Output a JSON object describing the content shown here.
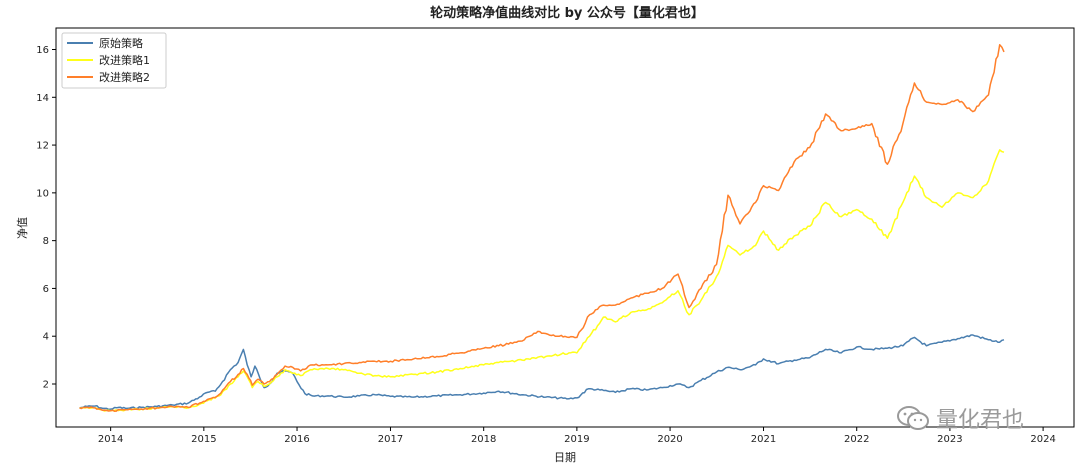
{
  "chart_data": {
    "type": "line",
    "title": "轮动策略净值曲线对比 by 公众号【量化君也】",
    "xlabel": "日期",
    "ylabel": "净值",
    "xlim": [
      "2013-06-01",
      "2024-05-01"
    ],
    "ylim": [
      0.2,
      16.9
    ],
    "x_ticks": [
      "2014",
      "2015",
      "2016",
      "2017",
      "2018",
      "2019",
      "2020",
      "2021",
      "2022",
      "2023",
      "2024"
    ],
    "y_ticks": [
      "2",
      "4",
      "6",
      "8",
      "10",
      "12",
      "14",
      "16"
    ],
    "grid": false,
    "legend_position": "top-left",
    "series": [
      {
        "name": "原始策略",
        "color": "#4a7fb0",
        "points": [
          [
            "2013-09-01",
            1.0
          ],
          [
            "2013-10-01",
            1.06
          ],
          [
            "2013-11-01",
            1.08
          ],
          [
            "2013-12-01",
            0.98
          ],
          [
            "2014-01-01",
            0.95
          ],
          [
            "2014-02-01",
            1.02
          ],
          [
            "2014-03-01",
            0.98
          ],
          [
            "2014-05-01",
            1.02
          ],
          [
            "2014-07-01",
            1.06
          ],
          [
            "2014-09-01",
            1.12
          ],
          [
            "2014-11-01",
            1.2
          ],
          [
            "2014-12-15",
            1.45
          ],
          [
            "2015-01-15",
            1.65
          ],
          [
            "2015-02-15",
            1.7
          ],
          [
            "2015-03-15",
            2.1
          ],
          [
            "2015-04-15",
            2.6
          ],
          [
            "2015-05-15",
            2.9
          ],
          [
            "2015-06-05",
            3.45
          ],
          [
            "2015-06-20",
            2.8
          ],
          [
            "2015-07-05",
            2.3
          ],
          [
            "2015-07-20",
            2.75
          ],
          [
            "2015-08-10",
            2.2
          ],
          [
            "2015-08-25",
            1.85
          ],
          [
            "2015-09-15",
            2.0
          ],
          [
            "2015-10-15",
            2.45
          ],
          [
            "2015-11-15",
            2.55
          ],
          [
            "2015-12-15",
            2.45
          ],
          [
            "2016-01-10",
            1.95
          ],
          [
            "2016-02-01",
            1.6
          ],
          [
            "2016-03-01",
            1.5
          ],
          [
            "2016-05-01",
            1.5
          ],
          [
            "2016-07-01",
            1.45
          ],
          [
            "2016-09-01",
            1.5
          ],
          [
            "2016-11-01",
            1.55
          ],
          [
            "2017-01-01",
            1.48
          ],
          [
            "2017-04-01",
            1.45
          ],
          [
            "2017-07-01",
            1.5
          ],
          [
            "2017-10-01",
            1.55
          ],
          [
            "2018-01-01",
            1.62
          ],
          [
            "2018-03-01",
            1.7
          ],
          [
            "2018-06-01",
            1.55
          ],
          [
            "2018-09-01",
            1.45
          ],
          [
            "2018-12-01",
            1.38
          ],
          [
            "2019-01-01",
            1.42
          ],
          [
            "2019-02-15",
            1.8
          ],
          [
            "2019-04-01",
            1.75
          ],
          [
            "2019-06-01",
            1.65
          ],
          [
            "2019-08-01",
            1.8
          ],
          [
            "2019-10-01",
            1.75
          ],
          [
            "2019-12-01",
            1.85
          ],
          [
            "2020-02-01",
            2.0
          ],
          [
            "2020-03-15",
            1.85
          ],
          [
            "2020-05-01",
            2.15
          ],
          [
            "2020-07-01",
            2.5
          ],
          [
            "2020-08-15",
            2.7
          ],
          [
            "2020-10-01",
            2.6
          ],
          [
            "2020-12-01",
            2.8
          ],
          [
            "2021-01-01",
            3.05
          ],
          [
            "2021-03-01",
            2.85
          ],
          [
            "2021-05-01",
            3.0
          ],
          [
            "2021-07-01",
            3.1
          ],
          [
            "2021-09-01",
            3.45
          ],
          [
            "2021-11-01",
            3.3
          ],
          [
            "2022-01-01",
            3.55
          ],
          [
            "2022-03-01",
            3.45
          ],
          [
            "2022-05-01",
            3.5
          ],
          [
            "2022-07-01",
            3.6
          ],
          [
            "2022-08-15",
            3.95
          ],
          [
            "2022-10-01",
            3.6
          ],
          [
            "2022-12-01",
            3.75
          ],
          [
            "2023-02-01",
            3.9
          ],
          [
            "2023-04-01",
            4.05
          ],
          [
            "2023-06-01",
            3.85
          ],
          [
            "2023-07-15",
            3.75
          ],
          [
            "2023-08-01",
            3.85
          ]
        ]
      },
      {
        "name": "改进策略1",
        "color": "#ffff1a",
        "points": [
          [
            "2013-09-01",
            1.0
          ],
          [
            "2013-10-01",
            1.02
          ],
          [
            "2013-11-01",
            1.0
          ],
          [
            "2013-12-01",
            0.9
          ],
          [
            "2014-01-01",
            0.88
          ],
          [
            "2014-03-01",
            0.92
          ],
          [
            "2014-05-01",
            0.95
          ],
          [
            "2014-07-01",
            1.0
          ],
          [
            "2014-09-01",
            1.05
          ],
          [
            "2014-11-01",
            1.0
          ],
          [
            "2014-12-15",
            1.15
          ],
          [
            "2015-01-15",
            1.3
          ],
          [
            "2015-03-01",
            1.5
          ],
          [
            "2015-04-15",
            2.0
          ],
          [
            "2015-05-15",
            2.3
          ],
          [
            "2015-06-05",
            2.55
          ],
          [
            "2015-06-20",
            2.3
          ],
          [
            "2015-07-10",
            1.85
          ],
          [
            "2015-08-01",
            2.1
          ],
          [
            "2015-08-25",
            1.9
          ],
          [
            "2015-09-15",
            2.0
          ],
          [
            "2015-10-15",
            2.3
          ],
          [
            "2015-11-15",
            2.6
          ],
          [
            "2015-12-15",
            2.45
          ],
          [
            "2016-01-15",
            2.35
          ],
          [
            "2016-03-01",
            2.6
          ],
          [
            "2016-05-01",
            2.65
          ],
          [
            "2016-07-01",
            2.6
          ],
          [
            "2016-09-01",
            2.45
          ],
          [
            "2016-11-01",
            2.35
          ],
          [
            "2017-01-01",
            2.3
          ],
          [
            "2017-04-01",
            2.4
          ],
          [
            "2017-07-01",
            2.5
          ],
          [
            "2017-10-01",
            2.65
          ],
          [
            "2018-01-01",
            2.8
          ],
          [
            "2018-03-01",
            2.9
          ],
          [
            "2018-06-01",
            3.0
          ],
          [
            "2018-09-01",
            3.15
          ],
          [
            "2018-12-01",
            3.3
          ],
          [
            "2019-01-01",
            3.3
          ],
          [
            "2019-02-20",
            4.0
          ],
          [
            "2019-04-15",
            4.8
          ],
          [
            "2019-06-01",
            4.6
          ],
          [
            "2019-08-01",
            5.0
          ],
          [
            "2019-10-01",
            5.1
          ],
          [
            "2019-12-01",
            5.4
          ],
          [
            "2020-02-01",
            5.9
          ],
          [
            "2020-03-15",
            4.9
          ],
          [
            "2020-05-01",
            5.5
          ],
          [
            "2020-07-01",
            6.5
          ],
          [
            "2020-08-15",
            7.8
          ],
          [
            "2020-10-01",
            7.4
          ],
          [
            "2020-12-01",
            7.8
          ],
          [
            "2021-01-01",
            8.4
          ],
          [
            "2021-03-01",
            7.6
          ],
          [
            "2021-05-01",
            8.2
          ],
          [
            "2021-07-01",
            8.6
          ],
          [
            "2021-09-01",
            9.6
          ],
          [
            "2021-11-01",
            9.0
          ],
          [
            "2022-01-01",
            9.3
          ],
          [
            "2022-03-01",
            8.9
          ],
          [
            "2022-05-01",
            8.1
          ],
          [
            "2022-07-01",
            9.6
          ],
          [
            "2022-08-15",
            10.7
          ],
          [
            "2022-10-01",
            9.8
          ],
          [
            "2022-12-01",
            9.4
          ],
          [
            "2023-02-01",
            10.0
          ],
          [
            "2023-04-01",
            9.8
          ],
          [
            "2023-06-01",
            10.5
          ],
          [
            "2023-07-15",
            11.8
          ],
          [
            "2023-08-01",
            11.7
          ]
        ]
      },
      {
        "name": "改进策略2",
        "color": "#ff7f2a",
        "points": [
          [
            "2013-09-01",
            1.0
          ],
          [
            "2013-10-01",
            1.02
          ],
          [
            "2013-11-01",
            1.0
          ],
          [
            "2013-12-01",
            0.9
          ],
          [
            "2014-01-01",
            0.88
          ],
          [
            "2014-03-01",
            0.92
          ],
          [
            "2014-05-01",
            0.95
          ],
          [
            "2014-07-01",
            1.0
          ],
          [
            "2014-09-01",
            1.05
          ],
          [
            "2014-11-01",
            1.02
          ],
          [
            "2014-12-15",
            1.2
          ],
          [
            "2015-01-15",
            1.35
          ],
          [
            "2015-03-01",
            1.55
          ],
          [
            "2015-04-15",
            2.1
          ],
          [
            "2015-05-15",
            2.4
          ],
          [
            "2015-06-05",
            2.65
          ],
          [
            "2015-06-20",
            2.4
          ],
          [
            "2015-07-10",
            1.95
          ],
          [
            "2015-08-01",
            2.2
          ],
          [
            "2015-08-25",
            2.0
          ],
          [
            "2015-09-15",
            2.1
          ],
          [
            "2015-10-15",
            2.4
          ],
          [
            "2015-11-15",
            2.75
          ],
          [
            "2015-12-15",
            2.7
          ],
          [
            "2016-01-15",
            2.55
          ],
          [
            "2016-03-01",
            2.8
          ],
          [
            "2016-05-01",
            2.8
          ],
          [
            "2016-07-01",
            2.85
          ],
          [
            "2016-09-01",
            2.9
          ],
          [
            "2016-11-01",
            2.95
          ],
          [
            "2017-01-01",
            2.95
          ],
          [
            "2017-04-01",
            3.05
          ],
          [
            "2017-07-01",
            3.15
          ],
          [
            "2017-10-01",
            3.3
          ],
          [
            "2018-01-01",
            3.5
          ],
          [
            "2018-03-01",
            3.6
          ],
          [
            "2018-06-01",
            3.8
          ],
          [
            "2018-08-01",
            4.2
          ],
          [
            "2018-10-01",
            4.05
          ],
          [
            "2018-12-01",
            3.95
          ],
          [
            "2019-01-01",
            3.95
          ],
          [
            "2019-02-20",
            4.9
          ],
          [
            "2019-04-15",
            5.3
          ],
          [
            "2019-06-01",
            5.3
          ],
          [
            "2019-08-01",
            5.6
          ],
          [
            "2019-10-01",
            5.8
          ],
          [
            "2019-12-01",
            6.0
          ],
          [
            "2020-02-01",
            6.6
          ],
          [
            "2020-03-15",
            5.2
          ],
          [
            "2020-05-01",
            6.0
          ],
          [
            "2020-07-01",
            7.0
          ],
          [
            "2020-08-15",
            9.9
          ],
          [
            "2020-10-01",
            8.7
          ],
          [
            "2020-12-01",
            9.6
          ],
          [
            "2021-01-01",
            10.3
          ],
          [
            "2021-03-01",
            10.1
          ],
          [
            "2021-05-01",
            11.3
          ],
          [
            "2021-07-01",
            11.9
          ],
          [
            "2021-09-01",
            13.3
          ],
          [
            "2021-11-01",
            12.6
          ],
          [
            "2022-01-01",
            12.7
          ],
          [
            "2022-03-01",
            12.9
          ],
          [
            "2022-05-01",
            11.2
          ],
          [
            "2022-07-01",
            12.9
          ],
          [
            "2022-08-15",
            14.6
          ],
          [
            "2022-10-01",
            13.8
          ],
          [
            "2022-12-01",
            13.7
          ],
          [
            "2023-02-01",
            13.9
          ],
          [
            "2023-04-01",
            13.4
          ],
          [
            "2023-06-01",
            14.1
          ],
          [
            "2023-07-15",
            16.2
          ],
          [
            "2023-08-01",
            15.9
          ]
        ]
      }
    ]
  },
  "watermark": {
    "text": "量化君也",
    "icon": "wechat-icon"
  }
}
